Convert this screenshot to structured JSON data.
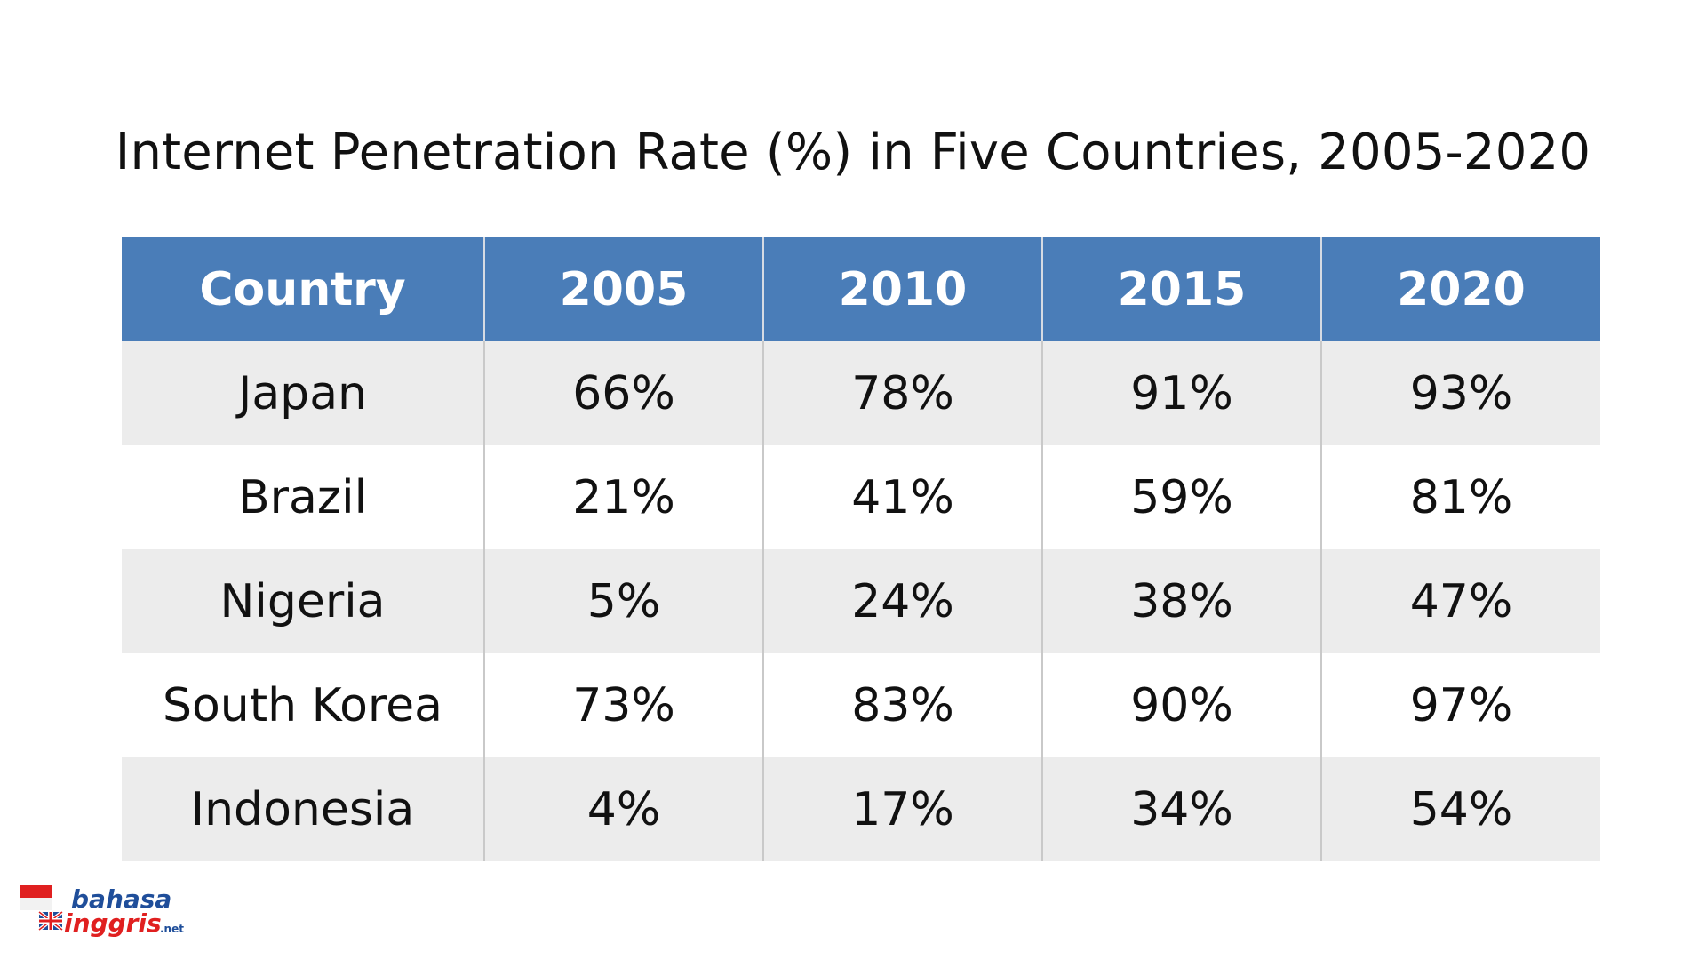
{
  "colors": {
    "header_bg": "#4a7db8",
    "header_text": "#ffffff",
    "row_alt_bg": "#ececec",
    "row_bg": "#ffffff",
    "logo_blue": "#1f4e9a",
    "logo_red": "#e02020"
  },
  "chart_data": {
    "type": "table",
    "title": "Internet Penetration Rate (%) in Five Countries, 2005-2020",
    "columns": [
      "Country",
      "2005",
      "2010",
      "2015",
      "2020"
    ],
    "rows": [
      [
        "Japan",
        "66%",
        "78%",
        "91%",
        "93%"
      ],
      [
        "Brazil",
        "21%",
        "41%",
        "59%",
        "81%"
      ],
      [
        "Nigeria",
        "5%",
        "24%",
        "38%",
        "47%"
      ],
      [
        "South Korea",
        "73%",
        "83%",
        "90%",
        "97%"
      ],
      [
        "Indonesia",
        "4%",
        "17%",
        "34%",
        "54%"
      ]
    ]
  },
  "logo": {
    "line1": "bahasa",
    "line2": "inggris",
    "suffix": ".net",
    "icon": "indonesia-uk-flag-icon"
  }
}
